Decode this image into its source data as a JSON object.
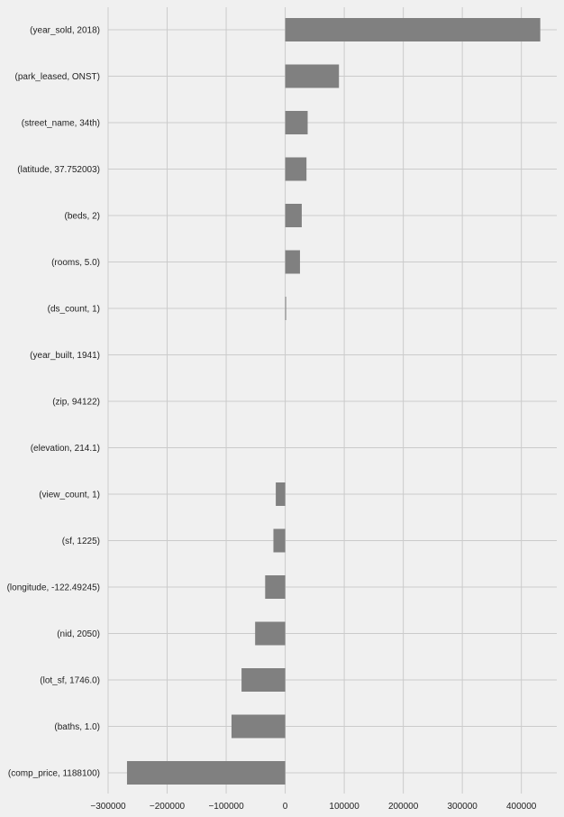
{
  "chart_data": {
    "type": "bar",
    "orientation": "horizontal",
    "title": "",
    "xlabel": "",
    "ylabel": "",
    "xlim": [
      -300000,
      460000
    ],
    "grid": true,
    "bar_color": "#808080",
    "background": "#f0f0f0",
    "xticks": [
      -300000,
      -200000,
      -100000,
      0,
      100000,
      200000,
      300000,
      400000
    ],
    "xtick_labels": [
      "−300000",
      "−200000",
      "−100000",
      "0",
      "100000",
      "200000",
      "300000",
      "400000"
    ],
    "categories": [
      "(year_sold, 2018)",
      "(park_leased, ONST)",
      "(street_name, 34th)",
      "(latitude, 37.752003)",
      "(beds, 2)",
      "(rooms, 5.0)",
      "(ds_count, 1)",
      "(year_built, 1941)",
      "(zip, 94122)",
      "(elevation, 214.1)",
      "(view_count, 1)",
      "(sf, 1225)",
      "(longitude, -122.49245)",
      "(nid, 2050)",
      "(lot_sf, 1746.0)",
      "(baths, 1.0)",
      "(comp_price, 1188100)"
    ],
    "values": [
      432000,
      91000,
      38000,
      36000,
      28000,
      25000,
      1500,
      0,
      0,
      0,
      -16000,
      -20000,
      -34000,
      -51000,
      -74000,
      -91000,
      -268000
    ]
  }
}
